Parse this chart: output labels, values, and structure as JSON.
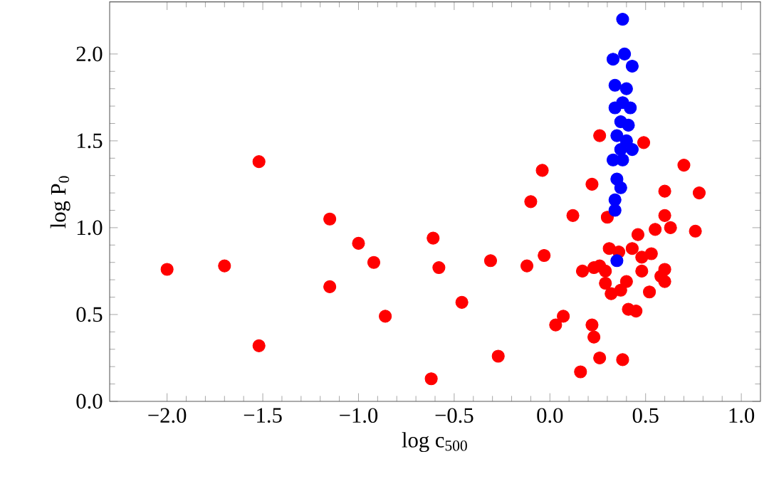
{
  "chart_data": {
    "type": "scatter",
    "xlabel": "log c$_{500}$",
    "ylabel": "log P$_{0}$",
    "xlim": [
      -2.3,
      1.1
    ],
    "ylim": [
      0,
      2.3
    ],
    "xticks": [
      {
        "value": -2,
        "label": "−2.0"
      },
      {
        "value": -1.5,
        "label": "−1.5"
      },
      {
        "value": -1,
        "label": "−1.0"
      },
      {
        "value": -0.5,
        "label": "−0.5"
      },
      {
        "value": 0,
        "label": "0.0"
      },
      {
        "value": 0.5,
        "label": "0.5"
      },
      {
        "value": 1,
        "label": "1.0"
      }
    ],
    "yticks": [
      {
        "value": 0,
        "label": "0.0"
      },
      {
        "value": 0.5,
        "label": "0.5"
      },
      {
        "value": 1,
        "label": "1.0"
      },
      {
        "value": 1.5,
        "label": "1.5"
      },
      {
        "value": 2,
        "label": "2.0"
      }
    ],
    "marker": "circle",
    "series": [
      {
        "color": "#ff0000",
        "x": [
          -2.0,
          -1.7,
          -1.52,
          -1.52,
          -1.15,
          -1.15,
          -1.0,
          -0.92,
          -0.86,
          -0.61,
          -0.58,
          -0.46,
          -0.31,
          -0.12,
          -0.03,
          -0.27,
          -0.62,
          -0.04,
          0.22,
          -0.1,
          0.12,
          0.3,
          0.6,
          0.46,
          0.55,
          0.63,
          0.76,
          0.31,
          0.36,
          0.43,
          0.48,
          0.53,
          0.17,
          0.23,
          0.26,
          0.29,
          0.48,
          0.6,
          0.58,
          0.6,
          0.29,
          0.4,
          0.37,
          0.32,
          0.52,
          0.41,
          0.45,
          0.07,
          0.03,
          0.22,
          0.23,
          0.26,
          0.38,
          0.16,
          0.26,
          0.49,
          0.6,
          0.7,
          0.78
        ],
        "values": [
          0.76,
          0.78,
          1.38,
          0.32,
          1.05,
          0.66,
          0.91,
          0.8,
          0.49,
          0.94,
          0.77,
          0.57,
          0.81,
          0.78,
          0.84,
          0.26,
          0.13,
          1.33,
          1.25,
          1.15,
          1.07,
          1.06,
          1.07,
          0.96,
          0.99,
          1.0,
          0.98,
          0.88,
          0.86,
          0.88,
          0.83,
          0.85,
          0.75,
          0.77,
          0.78,
          0.75,
          0.75,
          0.76,
          0.72,
          0.69,
          0.68,
          0.69,
          0.64,
          0.62,
          0.63,
          0.53,
          0.52,
          0.49,
          0.44,
          0.44,
          0.37,
          0.25,
          0.24,
          0.17,
          1.53,
          1.49,
          1.21,
          1.36,
          1.2
        ]
      },
      {
        "color": "#0000ff",
        "x": [
          0.38,
          0.33,
          0.39,
          0.43,
          0.34,
          0.4,
          0.38,
          0.34,
          0.42,
          0.37,
          0.41,
          0.35,
          0.4,
          0.37,
          0.43,
          0.33,
          0.38,
          0.35,
          0.37,
          0.34,
          0.34,
          0.35
        ],
        "values": [
          2.2,
          1.97,
          2.0,
          1.93,
          1.82,
          1.8,
          1.72,
          1.69,
          1.69,
          1.61,
          1.59,
          1.53,
          1.5,
          1.45,
          1.45,
          1.39,
          1.39,
          1.28,
          1.23,
          1.16,
          1.1,
          0.81
        ]
      }
    ]
  }
}
